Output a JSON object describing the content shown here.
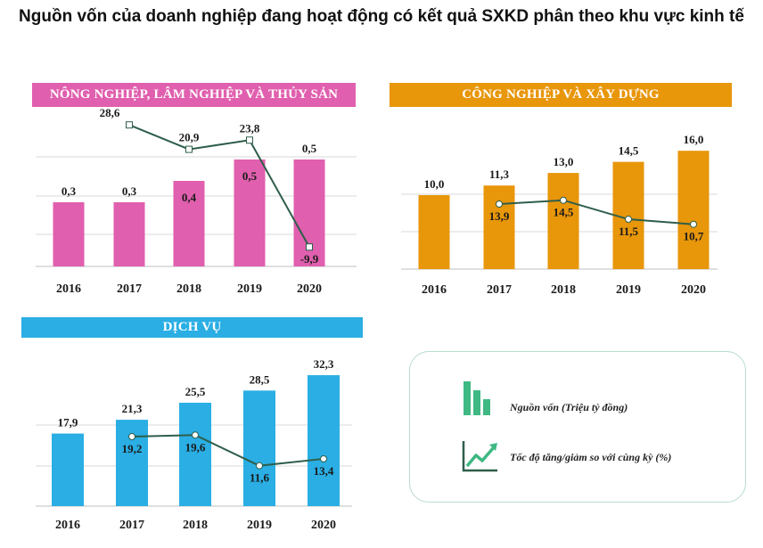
{
  "title": "Nguồn vốn của doanh nghiệp đang hoạt động có kết quả SXKD phân theo khu vực kinh tế",
  "chart_data": [
    {
      "type": "bar",
      "title": "NÔNG NGHIỆP, LÂM NGHIỆP VÀ THỦY SẢN",
      "categories": [
        "2016",
        "2017",
        "2018",
        "2019",
        "2020"
      ],
      "series": [
        {
          "name": "Nguồn vốn (Triệu tỷ đồng)",
          "type": "bar",
          "values": [
            0.3,
            0.3,
            0.4,
            0.5,
            0.5
          ],
          "labels": [
            "0,3",
            "0,3",
            "0,4",
            "0,5",
            "0,5"
          ],
          "color": "#e05fae"
        },
        {
          "name": "Tốc độ tăng/giảm so với cùng kỳ (%)",
          "type": "line",
          "values": [
            null,
            28.6,
            20.9,
            23.8,
            -9.9
          ],
          "labels": [
            "",
            "28,6",
            "20,9",
            "23,8",
            "-9,9"
          ],
          "color": "#2e5e4a"
        }
      ],
      "banner_color": "#e05fae"
    },
    {
      "type": "bar",
      "title": "CÔNG NGHIỆP VÀ XÂY DỰNG",
      "categories": [
        "2016",
        "2017",
        "2018",
        "2019",
        "2020"
      ],
      "series": [
        {
          "name": "Nguồn vốn (Triệu tỷ đồng)",
          "type": "bar",
          "values": [
            10.0,
            11.3,
            13.0,
            14.5,
            16.0
          ],
          "labels": [
            "10,0",
            "11,3",
            "13,0",
            "14,5",
            "16,0"
          ],
          "color": "#e8960a"
        },
        {
          "name": "Tốc độ tăng/giảm so với cùng kỳ (%)",
          "type": "line",
          "values": [
            null,
            13.9,
            14.5,
            11.5,
            10.7
          ],
          "labels": [
            "",
            "13,9",
            "14,5",
            "11,5",
            "10,7"
          ],
          "color": "#2e5e4a"
        }
      ],
      "banner_color": "#e8960a"
    },
    {
      "type": "bar",
      "title": "DỊCH VỤ",
      "categories": [
        "2016",
        "2017",
        "2018",
        "2019",
        "2020"
      ],
      "series": [
        {
          "name": "Nguồn vốn (Triệu tỷ đồng)",
          "type": "bar",
          "values": [
            17.9,
            21.3,
            25.5,
            28.5,
            32.3
          ],
          "labels": [
            "17,9",
            "21,3",
            "25,5",
            "28,5",
            "32,3"
          ],
          "color": "#2aaee4"
        },
        {
          "name": "Tốc độ tăng/giảm so với cùng kỳ (%)",
          "type": "line",
          "values": [
            null,
            19.2,
            19.6,
            11.6,
            13.4
          ],
          "labels": [
            "",
            "19,2",
            "19,6",
            "11,6",
            "13,4"
          ],
          "color": "#2e5e4a"
        }
      ],
      "banner_color": "#2aaee4"
    }
  ],
  "legend": {
    "bar_label": "Nguồn vốn (Triệu tỷ đồng)",
    "line_label": "Tốc độ tăng/giảm so với cùng kỳ (%)",
    "bar_icon": "bar-chart-icon",
    "line_icon": "trend-up-icon",
    "icon_color": "#3fb883"
  }
}
